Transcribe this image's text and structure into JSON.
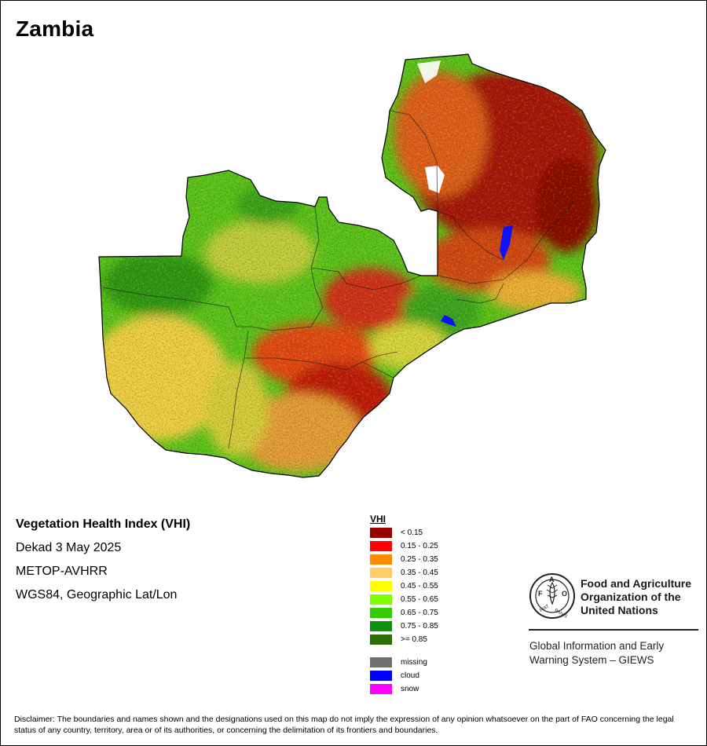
{
  "title": "Zambia",
  "info": {
    "index_name": "Vegetation Health Index (VHI)",
    "period": "Dekad 3 May 2025",
    "sensor": "METOP-AVHRR",
    "projection": "WGS84, Geographic Lat/Lon"
  },
  "legend": {
    "title": "VHI",
    "classes": [
      {
        "label": "< 0.15",
        "color": "#990000"
      },
      {
        "label": "0.15 - 0.25",
        "color": "#ff0000"
      },
      {
        "label": "0.25 - 0.35",
        "color": "#ff8c00"
      },
      {
        "label": "0.35 - 0.45",
        "color": "#ffcc66"
      },
      {
        "label": "0.45 - 0.55",
        "color": "#ffff00"
      },
      {
        "label": "0.55 - 0.65",
        "color": "#80ff00"
      },
      {
        "label": "0.65 - 0.75",
        "color": "#33cc00"
      },
      {
        "label": "0.75 - 0.85",
        "color": "#109010"
      },
      {
        "label": ">= 0.85",
        "color": "#2d6e00"
      }
    ],
    "special": [
      {
        "label": "missing",
        "color": "#707070"
      },
      {
        "label": "cloud",
        "color": "#0000ff"
      },
      {
        "label": "snow",
        "color": "#ff00ff"
      }
    ]
  },
  "organization": {
    "name": "Food and Agriculture Organization of the United Nations",
    "logo_letters": "FAO",
    "logo_motto": "FIAT PANIS",
    "system": "Global Information and Early Warning System – GIEWS"
  },
  "disclaimer": "Disclaimer: The boundaries and names shown and the designations used on this map do not imply the expression of any opinion whatsoever on the part of FAO concerning the legal status of any country, territory, area or of its authorities, or concerning the delimitation of its frontiers and boundaries."
}
